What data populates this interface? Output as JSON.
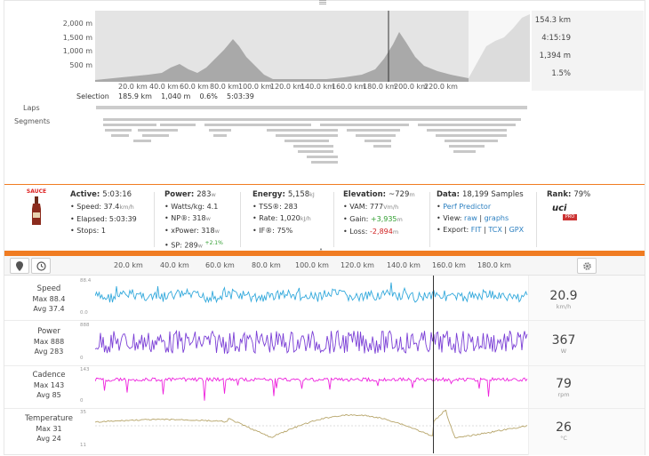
{
  "colors": {
    "accent": "#f07c22",
    "speed": "#33a9dc",
    "power": "#7b3fd6",
    "cadence": "#ee22dd",
    "temperature": "#b7a56a",
    "elevation_fill": "#c4c4c4",
    "cursor": "#333333"
  },
  "elevation": {
    "y_ticks": [
      "2,000 m",
      "1,500 m",
      "1,000 m",
      "500 m"
    ],
    "x_ticks": [
      "20.0 km",
      "40.0 km",
      "60.0 km",
      "80.0 km",
      "100.0 km",
      "120.0 km",
      "140.0 km",
      "160.0 km",
      "180.0 km",
      "200.0 km",
      "220.0 km"
    ],
    "stats": [
      "154.3 km",
      "4:15:19",
      "1,394 m",
      "1.5%"
    ],
    "selection": {
      "label": "Selection",
      "distance": "185.9 km",
      "gain": "1,040 m",
      "grade": "0.6%",
      "time": "5:03:39"
    },
    "laps_label": "Laps",
    "segments_label": "Segments"
  },
  "summary": {
    "logo_text": "SAUCE",
    "active": {
      "title": "Active:",
      "value": "5:03:16",
      "items": [
        "• Speed: 37.4",
        "• Elapsed: 5:03:39",
        "• Stops: 1"
      ],
      "speed_unit": "km/h"
    },
    "power": {
      "title": "Power:",
      "value": "283",
      "unit": "w",
      "items": [
        "• Watts/kg: 4.1",
        "• NP®: 318",
        "• xPower: 318",
        "• SP: 289"
      ],
      "sp_delta": "+2.1%"
    },
    "energy": {
      "title": "Energy:",
      "value": "5,158",
      "unit": "kJ",
      "items": [
        "• TSS®: 283",
        "• Rate: 1,020",
        "• IF®: 75%"
      ],
      "rate_unit": "kJ/h"
    },
    "elevation": {
      "title": "Elevation:",
      "value": "~729",
      "unit": "m",
      "vam": "• VAM: 777",
      "vam_unit": "Vm/h",
      "gain_label": "• Gain: ",
      "gain": "+3,935",
      "loss_label": "• Loss: ",
      "loss": "-2,894"
    },
    "data": {
      "title": "Data:",
      "value": "18,199 Samples",
      "perf_label": "• ",
      "perf_link": "Perf Predictor",
      "view_label": "• View: ",
      "view_raw": "raw",
      "view_graphs": "graphs",
      "export_label": "• Export: ",
      "export_fit": "FIT",
      "export_tcx": "TCX",
      "export_gpx": "GPX"
    },
    "rank": {
      "title": "Rank:",
      "value": "79%",
      "badge_text": "uci",
      "badge_sub": "PRO"
    }
  },
  "toolbar": {
    "x_ticks": [
      "20.0 km",
      "40.0 km",
      "60.0 km",
      "80.0 km",
      "100.0 km",
      "120.0 km",
      "140.0 km",
      "160.0 km",
      "180.0 km"
    ],
    "pin_icon": "map-pin-icon",
    "clock_icon": "clock-icon",
    "gear_icon": "gear-icon",
    "collapse_glyph": "˄"
  },
  "charts": [
    {
      "key": "speed",
      "name": "Speed",
      "max": "Max 88.4",
      "avg": "Avg 37.4",
      "ytop": "88.4",
      "ybot": "0.0",
      "value": "20.9",
      "unit": "km/h"
    },
    {
      "key": "power",
      "name": "Power",
      "max": "Max 888",
      "avg": "Avg 283",
      "ytop": "888",
      "ybot": "0",
      "value": "367",
      "unit": "W"
    },
    {
      "key": "cadence",
      "name": "Cadence",
      "max": "Max 143",
      "avg": "Avg 85",
      "ytop": "143",
      "ybot": "0",
      "value": "79",
      "unit": "rpm"
    },
    {
      "key": "temperature",
      "name": "Temperature",
      "max": "Max 31",
      "avg": "Avg 24",
      "ytop": "35",
      "ybot": "11",
      "value": "26",
      "unit": "°C"
    }
  ]
}
